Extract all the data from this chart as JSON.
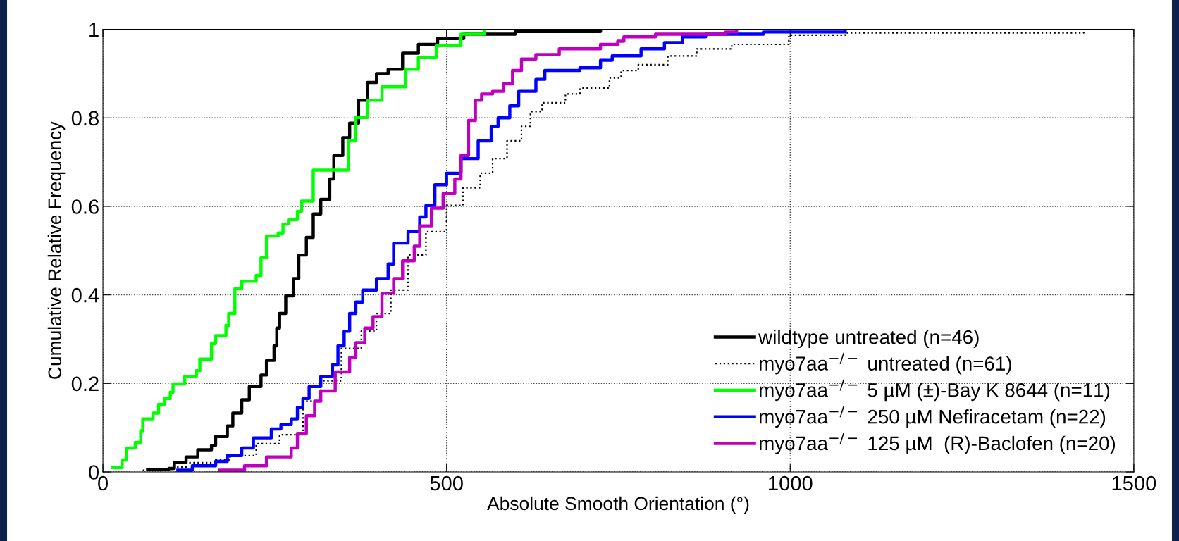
{
  "chart_data": {
    "type": "step",
    "xlabel": "Absolute Smooth Orientation (°)",
    "ylabel": "Cumulative Relative Frequency",
    "xlim": [
      0,
      1500
    ],
    "xticks": [
      0,
      500,
      1000,
      1500
    ],
    "ylim": [
      0,
      1
    ],
    "yticks": [
      0,
      0.2,
      0.4,
      0.6,
      0.8,
      1
    ],
    "grid": true,
    "legend": "bottom right",
    "marker": "none",
    "series": [
      {
        "name": "wildtype untreated (n=46)",
        "color": "#000000",
        "line_style": "solid",
        "x": [
          65,
          96,
          104,
          121,
          138,
          158,
          164,
          181,
          189,
          202,
          213,
          230,
          238,
          249,
          253,
          257,
          266,
          277,
          285,
          296,
          306,
          317,
          330,
          336,
          349,
          359,
          372,
          385,
          398,
          415,
          436,
          459,
          487,
          525,
          600,
          724
        ],
        "values": [
          0.006,
          0.008,
          0.021,
          0.034,
          0.05,
          0.06,
          0.08,
          0.104,
          0.133,
          0.163,
          0.193,
          0.219,
          0.252,
          0.285,
          0.325,
          0.358,
          0.398,
          0.437,
          0.49,
          0.53,
          0.583,
          0.616,
          0.662,
          0.715,
          0.755,
          0.788,
          0.84,
          0.88,
          0.9,
          0.91,
          0.946,
          0.966,
          0.979,
          0.989,
          0.995,
          1.0
        ]
      },
      {
        "name": "myo7aa$^{−/−}$ untreated (n=61)",
        "color": "#000000",
        "line_style": "dotted",
        "x": [
          58,
          100,
          121,
          164,
          185,
          223,
          257,
          291,
          317,
          347,
          376,
          398,
          419,
          444,
          470,
          500,
          524,
          549,
          567,
          588,
          609,
          622,
          639,
          673,
          694,
          737,
          754,
          779,
          822,
          864,
          915,
          998,
          1080,
          1427
        ],
        "values": [
          0.004,
          0.011,
          0.021,
          0.027,
          0.037,
          0.064,
          0.084,
          0.16,
          0.206,
          0.279,
          0.318,
          0.358,
          0.411,
          0.49,
          0.543,
          0.602,
          0.642,
          0.675,
          0.708,
          0.748,
          0.781,
          0.814,
          0.834,
          0.854,
          0.867,
          0.89,
          0.907,
          0.92,
          0.94,
          0.956,
          0.966,
          0.987,
          0.992,
          1.0
        ]
      },
      {
        "name": "myo7aa$^{−/−}$ 5 µM (±)-Bay K 8644 (n=11)",
        "color": "#00ff00",
        "line_style": "solid",
        "x": [
          14,
          28,
          34,
          47,
          55,
          58,
          73,
          81,
          90,
          98,
          102,
          119,
          136,
          141,
          158,
          164,
          179,
          183,
          192,
          202,
          223,
          230,
          238,
          255,
          262,
          270,
          283,
          289,
          306,
          357,
          368,
          385,
          406,
          440,
          459,
          485,
          521,
          555
        ],
        "values": [
          0.01,
          0.027,
          0.054,
          0.067,
          0.093,
          0.12,
          0.133,
          0.153,
          0.166,
          0.18,
          0.199,
          0.216,
          0.229,
          0.255,
          0.29,
          0.308,
          0.331,
          0.358,
          0.414,
          0.431,
          0.444,
          0.484,
          0.533,
          0.54,
          0.56,
          0.57,
          0.589,
          0.612,
          0.682,
          0.748,
          0.801,
          0.84,
          0.87,
          0.91,
          0.936,
          0.963,
          0.989,
          1.0
        ]
      },
      {
        "name": "myo7aa$^{−/−}$ 250 µM Nefiracetam (n=22)",
        "color": "#0000ff",
        "line_style": "solid",
        "x": [
          109,
          130,
          164,
          181,
          202,
          219,
          245,
          259,
          274,
          283,
          291,
          300,
          317,
          334,
          342,
          351,
          359,
          368,
          378,
          398,
          415,
          423,
          444,
          461,
          470,
          483,
          500,
          521,
          546,
          565,
          575,
          592,
          605,
          630,
          643,
          694,
          724,
          741,
          783,
          817,
          843,
          877,
          961,
          1080
        ],
        "values": [
          0.004,
          0.014,
          0.024,
          0.037,
          0.054,
          0.077,
          0.097,
          0.107,
          0.12,
          0.146,
          0.166,
          0.193,
          0.216,
          0.242,
          0.285,
          0.318,
          0.358,
          0.384,
          0.411,
          0.437,
          0.47,
          0.517,
          0.543,
          0.576,
          0.602,
          0.649,
          0.675,
          0.708,
          0.748,
          0.781,
          0.8,
          0.827,
          0.86,
          0.887,
          0.907,
          0.913,
          0.93,
          0.94,
          0.956,
          0.97,
          0.983,
          0.989,
          0.994,
          1.0
        ]
      },
      {
        "name": "myo7aa$^{−/−}$ 125 µM  (R)-Baclofen (n=20)",
        "color": "#bf00bf",
        "line_style": "solid",
        "x": [
          170,
          206,
          238,
          274,
          283,
          296,
          308,
          317,
          338,
          359,
          368,
          381,
          393,
          406,
          423,
          436,
          453,
          461,
          478,
          495,
          512,
          521,
          532,
          542,
          551,
          567,
          583,
          596,
          609,
          630,
          664,
          724,
          749,
          758,
          804,
          906,
          922
        ],
        "values": [
          0.004,
          0.014,
          0.034,
          0.054,
          0.087,
          0.127,
          0.16,
          0.183,
          0.226,
          0.259,
          0.292,
          0.325,
          0.351,
          0.404,
          0.437,
          0.477,
          0.51,
          0.556,
          0.596,
          0.629,
          0.662,
          0.715,
          0.794,
          0.84,
          0.854,
          0.86,
          0.877,
          0.907,
          0.933,
          0.943,
          0.956,
          0.966,
          0.973,
          0.983,
          0.989,
          0.994,
          1.0
        ]
      }
    ]
  }
}
